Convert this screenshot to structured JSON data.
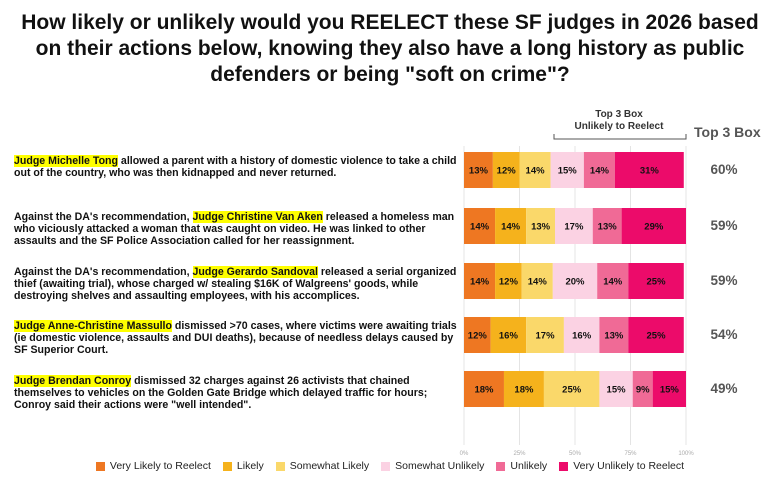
{
  "title": "How likely or unlikely would you REELECT these SF judges in 2026 based on their actions below, knowing they also have a long history as public defenders or being \"soft on crime\"?",
  "bracket_label_1": "Top 3 Box",
  "bracket_label_2": "Unlikely to Reelect",
  "top3_header": "Top 3 Box",
  "questions": [
    {
      "pre": "",
      "name": "Judge Michelle Tong",
      "post": " allowed a parent with a history of domestic violence to take a child out of the country, who was then kidnapped and never returned."
    },
    {
      "pre": "Against the DA's recommendation, ",
      "name": "Judge Christine Van Aken",
      "post": " released a homeless man who viciously attacked a woman that was caught on video. He was linked to other assaults and the SF Police Association called for her reassignment."
    },
    {
      "pre": "Against the DA's recommendation, ",
      "name": "Judge Gerardo Sandoval",
      "post": " released a serial organized thief (awaiting trial), whose charged w/ stealing $16K of Walgreens' goods, while destroying shelves and assaulting employees, with his accomplices."
    },
    {
      "pre": "",
      "name": "Judge Anne-Christine Massullo",
      "post": " dismissed >70 cases, where victims were awaiting trials (ie domestic violence, assaults and DUI deaths), because of needless delays caused by SF Superior Court."
    },
    {
      "pre": "",
      "name": "Judge Brendan Conroy",
      "post": " dismissed 32 charges against 26 activists that chained themselves to vehicles on the Golden Gate Bridge which delayed traffic for hours; Conroy said their actions were \"well intended\"."
    }
  ],
  "chart_data": {
    "type": "bar",
    "orientation": "horizontal",
    "stacked": true,
    "categories": [
      "Judge Michelle Tong",
      "Judge Christine Van Aken",
      "Judge Gerardo Sandoval",
      "Judge Anne-Christine Massullo",
      "Judge Brendan Conroy"
    ],
    "series": [
      {
        "name": "Very Likely to Reelect",
        "color": "#ee7722",
        "values": [
          13,
          14,
          14,
          12,
          18
        ]
      },
      {
        "name": "Likely",
        "color": "#f5b21c",
        "values": [
          12,
          14,
          12,
          16,
          18
        ]
      },
      {
        "name": "Somewhat Likely",
        "color": "#fad86a",
        "values": [
          14,
          13,
          14,
          17,
          25
        ]
      },
      {
        "name": "Somewhat Unlikely",
        "color": "#fbd2e3",
        "values": [
          15,
          17,
          20,
          16,
          15
        ]
      },
      {
        "name": "Unlikely",
        "color": "#f06a96",
        "values": [
          14,
          13,
          14,
          13,
          9
        ]
      },
      {
        "name": "Very Unlikely to Reelect",
        "color": "#ec0b6a",
        "values": [
          31,
          29,
          25,
          25,
          15
        ]
      }
    ],
    "top3_box_unlikely": [
      60,
      59,
      59,
      54,
      49
    ],
    "top3_labels": [
      "60%",
      "59%",
      "59%",
      "54%",
      "49%"
    ],
    "x_ticks": [
      "0%",
      "25%",
      "50%",
      "75%",
      "100%"
    ],
    "xlim": [
      0,
      100
    ],
    "legend_position": "bottom"
  }
}
